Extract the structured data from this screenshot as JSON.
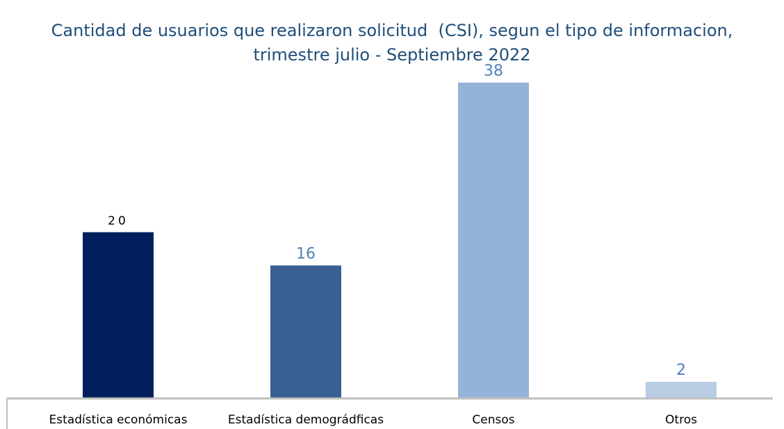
{
  "chart_data": {
    "type": "bar",
    "title": [
      "Cantidad de usuarios que realizaron solicitud  (CSI), segun el tipo de informacion,",
      "trimestre julio - Septiembre 2022"
    ],
    "categories": [
      "Estadística económicas",
      "Estadística demográdficas",
      "Censos",
      "Otros"
    ],
    "values": [
      20,
      16,
      38,
      2
    ],
    "colors": [
      "#001f5c",
      "#386092",
      "#95b3d7",
      "#b8cce4"
    ],
    "label_colors": [
      "#000000",
      "#4f81bd",
      "#4f81bd",
      "#4f81bd"
    ],
    "grid": false
  }
}
